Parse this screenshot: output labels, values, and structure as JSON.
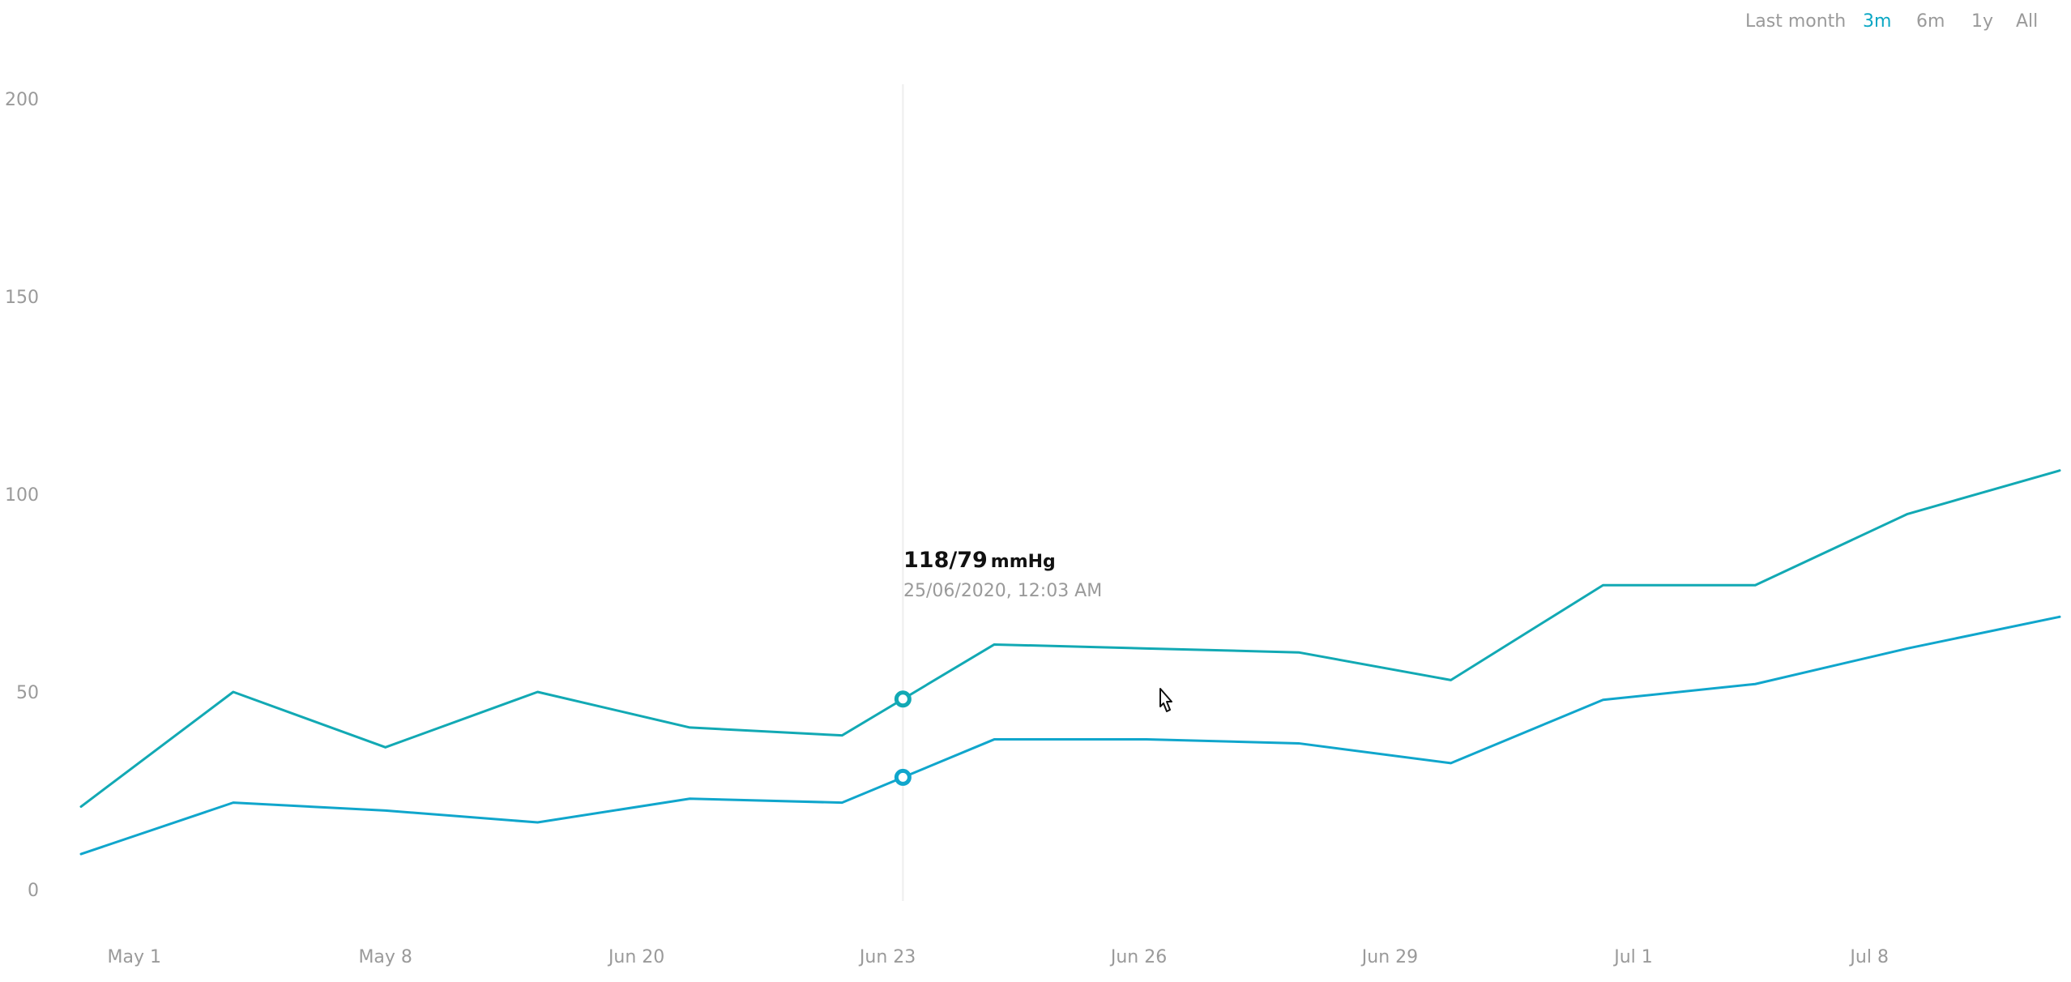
{
  "range_selector": {
    "options": [
      {
        "label": "Last month",
        "active": false
      },
      {
        "label": "3m",
        "active": true
      },
      {
        "label": "6m",
        "active": false
      },
      {
        "label": "1y",
        "active": false
      },
      {
        "label": "All",
        "active": false
      }
    ]
  },
  "tooltip": {
    "reading": "118/79",
    "unit": "mmHg",
    "timestamp": "25/06/2020, 12:03 AM"
  },
  "colors": {
    "systolic_line": "#12a9b4",
    "diastolic_line": "#10a6cc",
    "active_range": "#0aa7c4",
    "axis_text": "#9a9a9a",
    "crosshair": "#eeeeee"
  },
  "chart_data": {
    "type": "line",
    "x": [
      1,
      2,
      3,
      4,
      5,
      6,
      7,
      8,
      9,
      10,
      11,
      12,
      13,
      14
    ],
    "x_ticks": [
      {
        "x": 1.35,
        "label": "May 1"
      },
      {
        "x": 3.0,
        "label": "May 8"
      },
      {
        "x": 4.65,
        "label": "Jun 20"
      },
      {
        "x": 6.3,
        "label": "Jun 23"
      },
      {
        "x": 7.95,
        "label": "Jun 26"
      },
      {
        "x": 9.6,
        "label": "Jun 29"
      },
      {
        "x": 11.2,
        "label": "Jul 1"
      },
      {
        "x": 12.75,
        "label": "Jul 8"
      }
    ],
    "series": [
      {
        "values": [
          21,
          50,
          36,
          50,
          41,
          39,
          62,
          61,
          60,
          53,
          77,
          77,
          95,
          106
        ]
      },
      {
        "values": [
          9,
          22,
          20,
          17,
          23,
          22,
          38,
          38,
          37,
          32,
          48,
          52,
          61,
          69
        ]
      }
    ],
    "highlight_index": 6.4,
    "xlim": [
      1,
      14
    ],
    "ylim": [
      0,
      200
    ],
    "y_ticks": [
      0,
      50,
      100,
      150,
      200
    ],
    "grid": false,
    "legend": "none"
  }
}
